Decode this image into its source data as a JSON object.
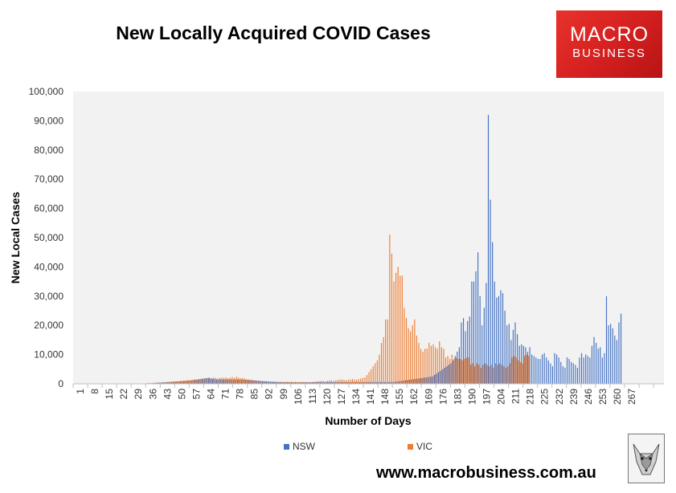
{
  "title": "New Locally Acquired COVID Cases",
  "logo": {
    "line1": "MACRO",
    "line2": "BUSINESS"
  },
  "website": "www.macrobusiness.com.au",
  "colors": {
    "nsw": "#4472C4",
    "vic": "#ED7D31",
    "plot_bg": "#F2F2F2"
  },
  "chart_data": {
    "type": "bar",
    "xlabel": "Number of Days",
    "ylabel": "New Local Cases",
    "ylim": [
      0,
      100000
    ],
    "yticks": [
      0,
      10000,
      20000,
      30000,
      40000,
      50000,
      60000,
      70000,
      80000,
      90000,
      100000
    ],
    "ytick_labels": [
      "0",
      "10,000",
      "20,000",
      "30,000",
      "40,000",
      "50,000",
      "60,000",
      "70,000",
      "80,000",
      "90,000",
      "100,000"
    ],
    "xtick_labels": [
      "1",
      "8",
      "15",
      "22",
      "29",
      "36",
      "43",
      "50",
      "57",
      "64",
      "71",
      "78",
      "85",
      "92",
      "99",
      "106",
      "113",
      "120",
      "127",
      "134",
      "141",
      "148",
      "155",
      "162",
      "169",
      "176",
      "183",
      "190",
      "197",
      "204",
      "211",
      "218",
      "225",
      "232",
      "239",
      "246",
      "253",
      "260",
      "267"
    ],
    "legend_position": "bottom",
    "series": [
      {
        "name": "NSW",
        "x_start": 1,
        "values": [
          0,
          0,
          0,
          0,
          0,
          0,
          0,
          0,
          0,
          0,
          0,
          0,
          0,
          0,
          0,
          0,
          0,
          0,
          0,
          0,
          0,
          0,
          0,
          0,
          0,
          0,
          0,
          0,
          0,
          0,
          0,
          0,
          0,
          0,
          0,
          0,
          100,
          150,
          200,
          250,
          300,
          350,
          400,
          450,
          500,
          550,
          600,
          650,
          700,
          750,
          800,
          850,
          900,
          950,
          1000,
          1050,
          1100,
          1200,
          1300,
          1400,
          1500,
          1600,
          1700,
          1800,
          1900,
          2000,
          1800,
          1700,
          1600,
          1500,
          1500,
          1500,
          1500,
          1500,
          1500,
          1500,
          1500,
          1500,
          1500,
          1500,
          1500,
          1450,
          1400,
          1350,
          1300,
          1250,
          1200,
          1150,
          1100,
          1050,
          1000,
          950,
          900,
          850,
          800,
          750,
          700,
          650,
          600,
          600,
          600,
          600,
          600,
          600,
          600,
          600,
          600,
          600,
          600,
          600,
          600,
          600,
          600,
          600,
          600,
          600,
          600,
          600,
          600,
          600,
          600,
          600,
          600,
          600,
          600,
          600,
          600,
          600,
          600,
          600,
          600,
          600,
          600,
          600,
          600,
          600,
          600,
          600,
          600,
          600,
          600,
          600,
          600,
          600,
          600,
          600,
          600,
          600,
          600,
          600,
          600,
          600,
          600,
          600,
          600,
          700,
          800,
          900,
          1000,
          1100,
          1200,
          1300,
          1400,
          1500,
          1600,
          1700,
          1800,
          1900,
          2000,
          2100,
          2200,
          2300,
          2400,
          2500,
          3000,
          3500,
          4000,
          4500,
          5000,
          5500,
          6000,
          6500,
          7000,
          8000,
          9500,
          11000,
          12500,
          21000,
          22500,
          18000,
          21500,
          23000,
          35000,
          35000,
          38500,
          45000,
          30000,
          20000,
          26000,
          34500,
          92000,
          63000,
          48500,
          35000,
          29500,
          30000,
          32000,
          31000,
          25000,
          20000,
          20500,
          15000,
          18500,
          21000,
          17000,
          13000,
          13500,
          13000,
          12500,
          11000,
          12500,
          10000,
          9500,
          9000,
          8500,
          8500,
          10000,
          10500,
          9000,
          8000,
          7000,
          6000,
          10500,
          10000,
          9000,
          7500,
          6000,
          5500,
          9000,
          8500,
          7500,
          7000,
          6500,
          5500,
          9000,
          10500,
          9000,
          10000,
          9500,
          9000,
          13000,
          16000,
          14000,
          12000,
          12500,
          9000,
          10500,
          30000,
          20000,
          20500,
          19000,
          16500,
          15000,
          21000,
          24000
        ]
      },
      {
        "name": "VIC",
        "x_start": 1,
        "values": [
          0,
          0,
          0,
          0,
          0,
          0,
          0,
          0,
          0,
          0,
          0,
          0,
          0,
          0,
          0,
          0,
          0,
          0,
          0,
          0,
          0,
          0,
          0,
          0,
          0,
          0,
          0,
          0,
          0,
          0,
          0,
          0,
          0,
          0,
          0,
          300,
          350,
          300,
          400,
          350,
          500,
          450,
          500,
          600,
          550,
          700,
          650,
          800,
          750,
          900,
          850,
          1000,
          1100,
          1050,
          1200,
          1300,
          1250,
          1400,
          1500,
          1450,
          1600,
          1700,
          1800,
          1900,
          2000,
          2100,
          1900,
          2200,
          2000,
          1800,
          2000,
          2100,
          2000,
          2200,
          1900,
          2100,
          2300,
          2000,
          2400,
          2100,
          1900,
          2000,
          1800,
          1600,
          1500,
          1400,
          1300,
          1200,
          1100,
          1000,
          950,
          900,
          850,
          800,
          780,
          760,
          740,
          720,
          700,
          680,
          660,
          640,
          620,
          600,
          580,
          560,
          540,
          520,
          500,
          500,
          500,
          500,
          500,
          500,
          500,
          600,
          700,
          800,
          900,
          1000,
          900,
          800,
          1000,
          1200,
          1100,
          1000,
          1200,
          1300,
          1400,
          1500,
          1300,
          1200,
          1400,
          1500,
          1600,
          1500,
          1400,
          1600,
          1800,
          2000,
          2200,
          3000,
          4000,
          5000,
          6000,
          7000,
          8000,
          10000,
          14000,
          16000,
          22000,
          22000,
          51000,
          44500,
          35000,
          38000,
          40000,
          37000,
          37000,
          26000,
          22500,
          19000,
          18000,
          20000,
          22000,
          16500,
          14000,
          12000,
          11000,
          12000,
          12000,
          14000,
          13000,
          13500,
          12500,
          12000,
          14500,
          12500,
          12000,
          9000,
          9500,
          8500,
          10000,
          8500,
          9000,
          8500,
          8500,
          8000,
          8500,
          9000,
          9000,
          6500,
          7000,
          6000,
          7000,
          6500,
          5500,
          6500,
          7000,
          6500,
          6000,
          6500,
          5500,
          7000,
          6500,
          7000,
          6500,
          6000,
          5500,
          6000,
          7000,
          9000,
          9500,
          9000,
          8000,
          7500,
          7000,
          9500,
          10000,
          9500
        ]
      }
    ]
  }
}
